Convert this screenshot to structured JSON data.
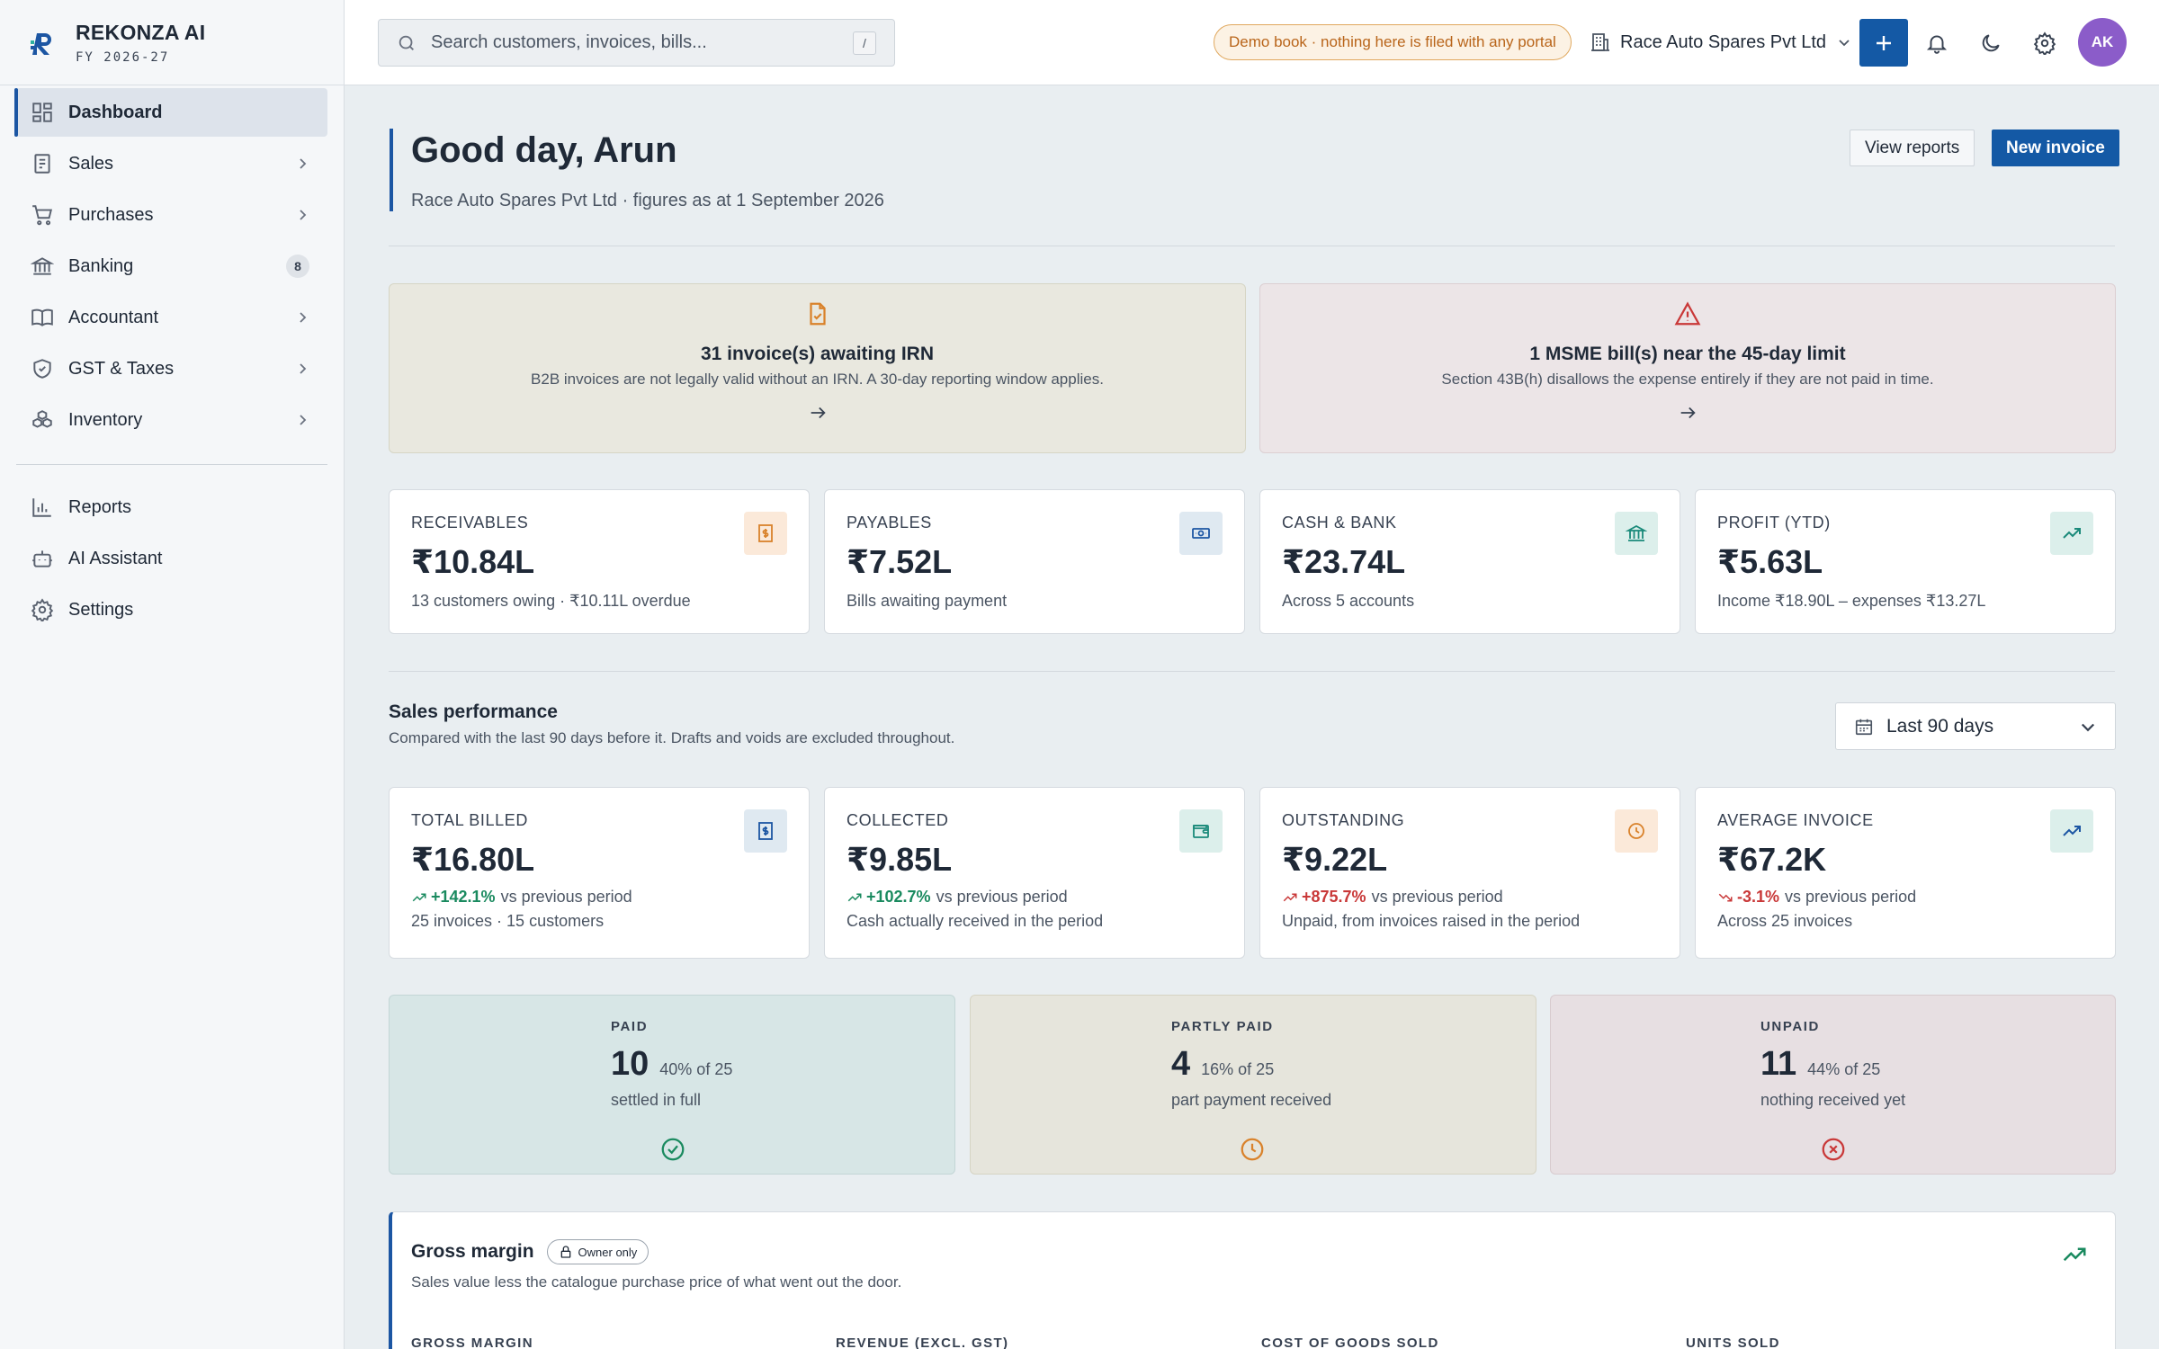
{
  "brand": {
    "name": "REKONZA AI",
    "fy": "FY 2026-27"
  },
  "sidebar": {
    "items": [
      {
        "label": "Dashboard",
        "icon": "dashboard-icon"
      },
      {
        "label": "Sales",
        "icon": "receipt-icon"
      },
      {
        "label": "Purchases",
        "icon": "cart-icon"
      },
      {
        "label": "Banking",
        "icon": "bank-icon",
        "badge": "8"
      },
      {
        "label": "Accountant",
        "icon": "book-icon"
      },
      {
        "label": "GST & Taxes",
        "icon": "shield-icon"
      },
      {
        "label": "Inventory",
        "icon": "boxes-icon"
      }
    ],
    "secondary": [
      {
        "label": "Reports",
        "icon": "bar-chart-icon"
      },
      {
        "label": "AI Assistant",
        "icon": "bot-icon"
      },
      {
        "label": "Settings",
        "icon": "gear-icon"
      }
    ]
  },
  "topbar": {
    "search_placeholder": "Search customers, invoices, bills...",
    "search_shortcut": "/",
    "demo_notice": "Demo book · nothing here is filed with any portal",
    "company": "Race Auto Spares Pvt Ltd",
    "avatar_initials": "AK"
  },
  "header": {
    "greeting": "Good day, Arun",
    "subtitle": "Race Auto Spares Pvt Ltd · figures as at 1 September 2026",
    "view_reports": "View reports",
    "new_invoice": "New invoice"
  },
  "alerts": [
    {
      "title": "31 invoice(s) awaiting IRN",
      "desc": "B2B invoices are not legally valid without an IRN. A 30-day reporting window applies.",
      "color": "#d9822b"
    },
    {
      "title": "1 MSME bill(s) near the 45-day limit",
      "desc": "Section 43B(h) disallows the expense entirely if they are not paid in time.",
      "color": "#c93838"
    }
  ],
  "kpis": [
    {
      "label": "RECEIVABLES",
      "value": "₹10.84L",
      "sub": "13 customers owing · ₹10.11L overdue"
    },
    {
      "label": "PAYABLES",
      "value": "₹7.52L",
      "sub": "Bills awaiting payment"
    },
    {
      "label": "CASH & BANK",
      "value": "₹23.74L",
      "sub": "Across 5 accounts"
    },
    {
      "label": "PROFIT (YTD)",
      "value": "₹5.63L",
      "sub": "Income ₹18.90L – expenses ₹13.27L"
    }
  ],
  "sales": {
    "title": "Sales performance",
    "subtitle": "Compared with the last 90 days before it. Drafts and voids are excluded throughout.",
    "range": "Last 90 days",
    "cards": [
      {
        "label": "TOTAL BILLED",
        "value": "₹16.80L",
        "change": "+142.1%",
        "vs": "vs previous period",
        "sub": "25 invoices · 15 customers"
      },
      {
        "label": "COLLECTED",
        "value": "₹9.85L",
        "change": "+102.7%",
        "vs": "vs previous period",
        "sub": "Cash actually received in the period"
      },
      {
        "label": "OUTSTANDING",
        "value": "₹9.22L",
        "change": "+875.7%",
        "vs": "vs previous period",
        "sub": "Unpaid, from invoices raised in the period"
      },
      {
        "label": "AVERAGE INVOICE",
        "value": "₹67.2K",
        "change": "-3.1%",
        "vs": "vs previous period",
        "sub": "Across 25 invoices"
      }
    ]
  },
  "status": [
    {
      "label": "PAID",
      "count": "10",
      "pct": "40% of 25",
      "sub": "settled in full"
    },
    {
      "label": "PARTLY PAID",
      "count": "4",
      "pct": "16% of 25",
      "sub": "part payment received"
    },
    {
      "label": "UNPAID",
      "count": "11",
      "pct": "44% of 25",
      "sub": "nothing received yet"
    }
  ],
  "gross_margin": {
    "title": "Gross margin",
    "badge": "Owner only",
    "subtitle": "Sales value less the catalogue purchase price of what went out the door.",
    "columns": [
      "GROSS MARGIN",
      "REVENUE (EXCL. GST)",
      "COST OF GOODS SOLD",
      "UNITS SOLD"
    ]
  },
  "colors": {
    "accent": "#1459a5",
    "positive": "#1a8a5f",
    "negative": "#c93838",
    "warning": "#d9822b"
  }
}
